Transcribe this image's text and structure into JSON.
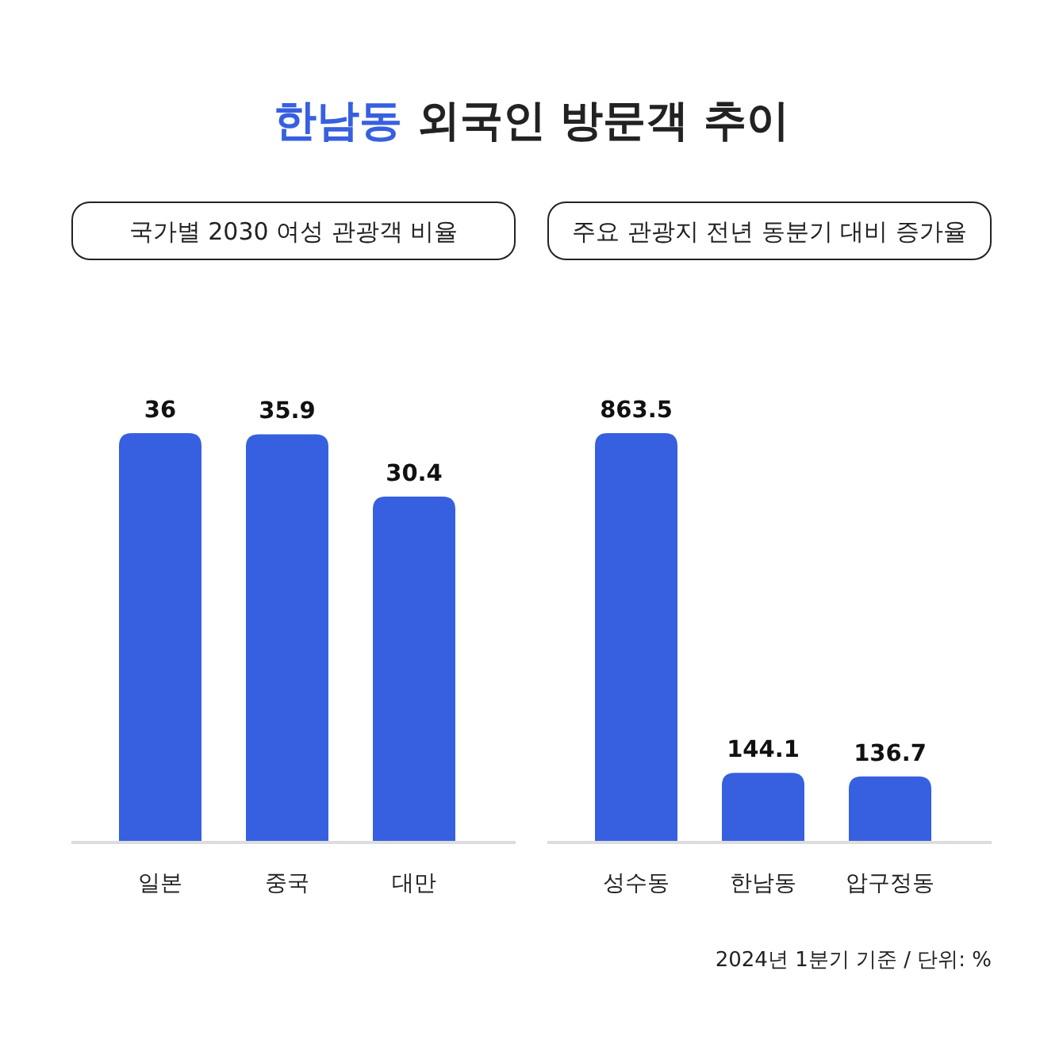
{
  "chart_data": [
    {
      "type": "bar",
      "title": "한남동 외국인 방문객 추이",
      "subtitle": "국가별 2030 여성 관광객 비율",
      "categories": [
        "일본",
        "중국",
        "대만"
      ],
      "values": [
        36,
        35.9,
        30.4
      ],
      "color": "#3760e0",
      "data_labels": true
    },
    {
      "type": "bar",
      "subtitle": "주요 관광지 전년 동분기 대비 증가율",
      "categories": [
        "성수동",
        "한남동",
        "압구정동"
      ],
      "values": [
        863.5,
        144.1,
        136.7
      ],
      "color": "#3760e0",
      "data_labels": true,
      "annotations": [
        "2024년 1분기 기준 / 단위: %"
      ]
    }
  ]
}
